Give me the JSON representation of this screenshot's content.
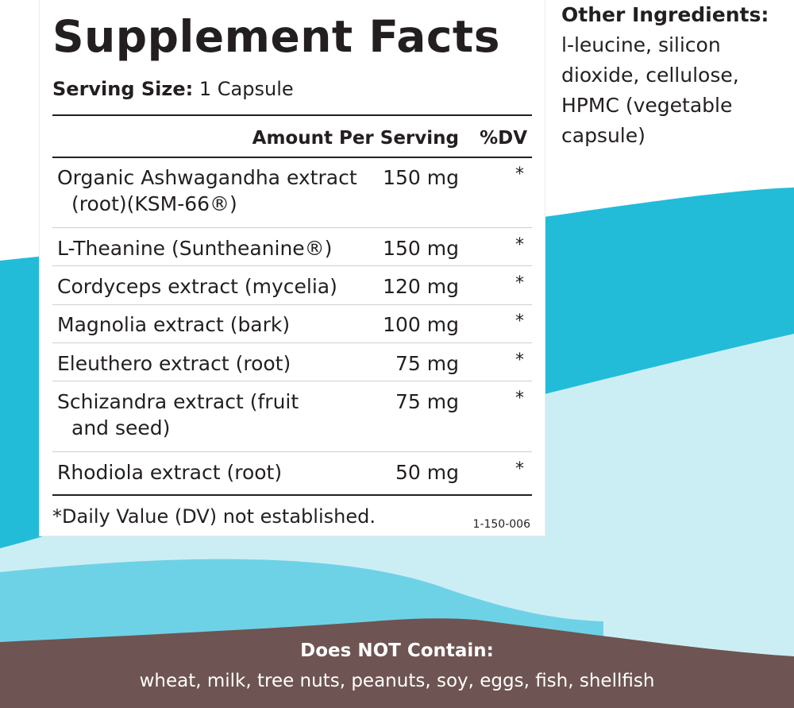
{
  "colors": {
    "teal": "#23bcd8",
    "light_teal": "#cbeef5",
    "brown": "#6e5452",
    "text": "#231f20"
  },
  "facts": {
    "title": "Supplement Facts",
    "serving_label": "Serving Size:",
    "serving_value": "1 Capsule",
    "col_amount": "Amount Per Serving",
    "col_dv": "%DV",
    "rows": [
      {
        "name": "Organic Ashwagandha extract",
        "name2": "(root)(KSM-66®)",
        "amount": "150 mg",
        "dv": "*"
      },
      {
        "name": "L-Theanine (Suntheanine®)",
        "name2": "",
        "amount": "150 mg",
        "dv": "*"
      },
      {
        "name": "Cordyceps extract (mycelia)",
        "name2": "",
        "amount": "120 mg",
        "dv": "*"
      },
      {
        "name": "Magnolia extract (bark)",
        "name2": "",
        "amount": "100 mg",
        "dv": "*"
      },
      {
        "name": "Eleuthero extract (root)",
        "name2": "",
        "amount": "75 mg",
        "dv": "*"
      },
      {
        "name": "Schizandra extract (fruit",
        "name2": "and seed)",
        "amount": "75 mg",
        "dv": "*"
      },
      {
        "name": "Rhodiola extract (root)",
        "name2": "",
        "amount": "50 mg",
        "dv": "*"
      }
    ],
    "footnote": "*Daily Value (DV) not established.",
    "code": "1-150-006"
  },
  "other_ingredients": {
    "heading": "Other Ingredients:",
    "body": "l-leucine, silicon\ndioxide, cellulose,\nHPMC (vegetable\ncapsule)"
  },
  "does_not_contain": {
    "heading": "Does NOT Contain:",
    "body": "wheat, milk, tree nuts, peanuts, soy, eggs, fish, shellfish"
  }
}
